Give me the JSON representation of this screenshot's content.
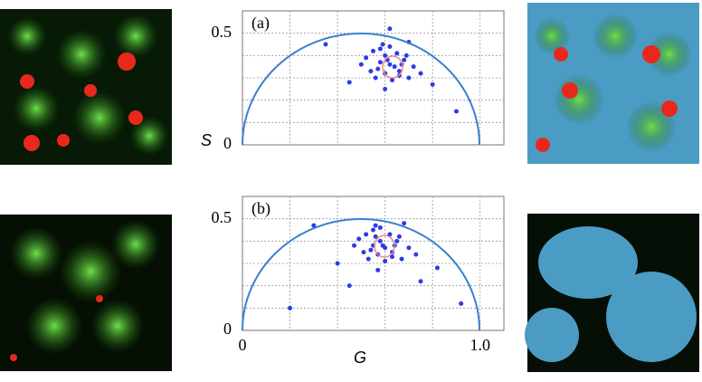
{
  "chart_data": [
    {
      "type": "scatter",
      "label": "(a)",
      "ylabel": "S",
      "xlim": [
        0,
        1.1
      ],
      "ylim": [
        0,
        0.6
      ],
      "yticks": [
        0,
        0.5
      ],
      "xgrid": [
        0.2,
        0.4,
        0.6,
        0.8,
        1.0
      ],
      "ygrid": [
        0.1,
        0.2,
        0.3,
        0.4,
        0.5
      ],
      "series": [
        {
          "color": "#2b3bea",
          "x": [
            0.64,
            0.6,
            0.58,
            0.66,
            0.7,
            0.55,
            0.62,
            0.68,
            0.52,
            0.6,
            0.72,
            0.57,
            0.65,
            0.63,
            0.5,
            0.75,
            0.59,
            0.67,
            0.61,
            0.54,
            0.69,
            0.56,
            0.62,
            0.66,
            0.58,
            0.45,
            0.8,
            0.7,
            0.6,
            0.35,
            0.9,
            0.62
          ],
          "y": [
            0.35,
            0.4,
            0.37,
            0.33,
            0.3,
            0.42,
            0.44,
            0.38,
            0.39,
            0.32,
            0.35,
            0.34,
            0.41,
            0.29,
            0.36,
            0.32,
            0.45,
            0.36,
            0.38,
            0.33,
            0.4,
            0.3,
            0.36,
            0.31,
            0.43,
            0.28,
            0.27,
            0.46,
            0.25,
            0.45,
            0.15,
            0.52
          ]
        }
      ]
    },
    {
      "type": "scatter",
      "label": "(b)",
      "xlabel": "G",
      "xlim": [
        0,
        1.1
      ],
      "ylim": [
        0,
        0.6
      ],
      "xticks": [
        0,
        {
          "value": 1,
          "label": "1.0"
        }
      ],
      "yticks": [
        0,
        0.5
      ],
      "xgrid": [
        0.2,
        0.4,
        0.6,
        0.8,
        1.0
      ],
      "ygrid": [
        0.1,
        0.2,
        0.3,
        0.4,
        0.5
      ],
      "series": [
        {
          "color": "#2b3bea",
          "x": [
            0.6,
            0.56,
            0.55,
            0.63,
            0.67,
            0.52,
            0.58,
            0.65,
            0.49,
            0.57,
            0.7,
            0.54,
            0.62,
            0.6,
            0.47,
            0.73,
            0.56,
            0.64,
            0.58,
            0.51,
            0.66,
            0.53,
            0.59,
            0.63,
            0.55,
            0.4,
            0.82,
            0.68,
            0.57,
            0.3,
            0.92,
            0.2,
            0.45,
            0.75
          ],
          "y": [
            0.37,
            0.42,
            0.38,
            0.35,
            0.32,
            0.43,
            0.46,
            0.4,
            0.41,
            0.34,
            0.37,
            0.36,
            0.43,
            0.31,
            0.38,
            0.34,
            0.47,
            0.38,
            0.4,
            0.35,
            0.42,
            0.32,
            0.38,
            0.33,
            0.45,
            0.3,
            0.28,
            0.48,
            0.27,
            0.47,
            0.12,
            0.1,
            0.2,
            0.22
          ]
        }
      ]
    }
  ]
}
